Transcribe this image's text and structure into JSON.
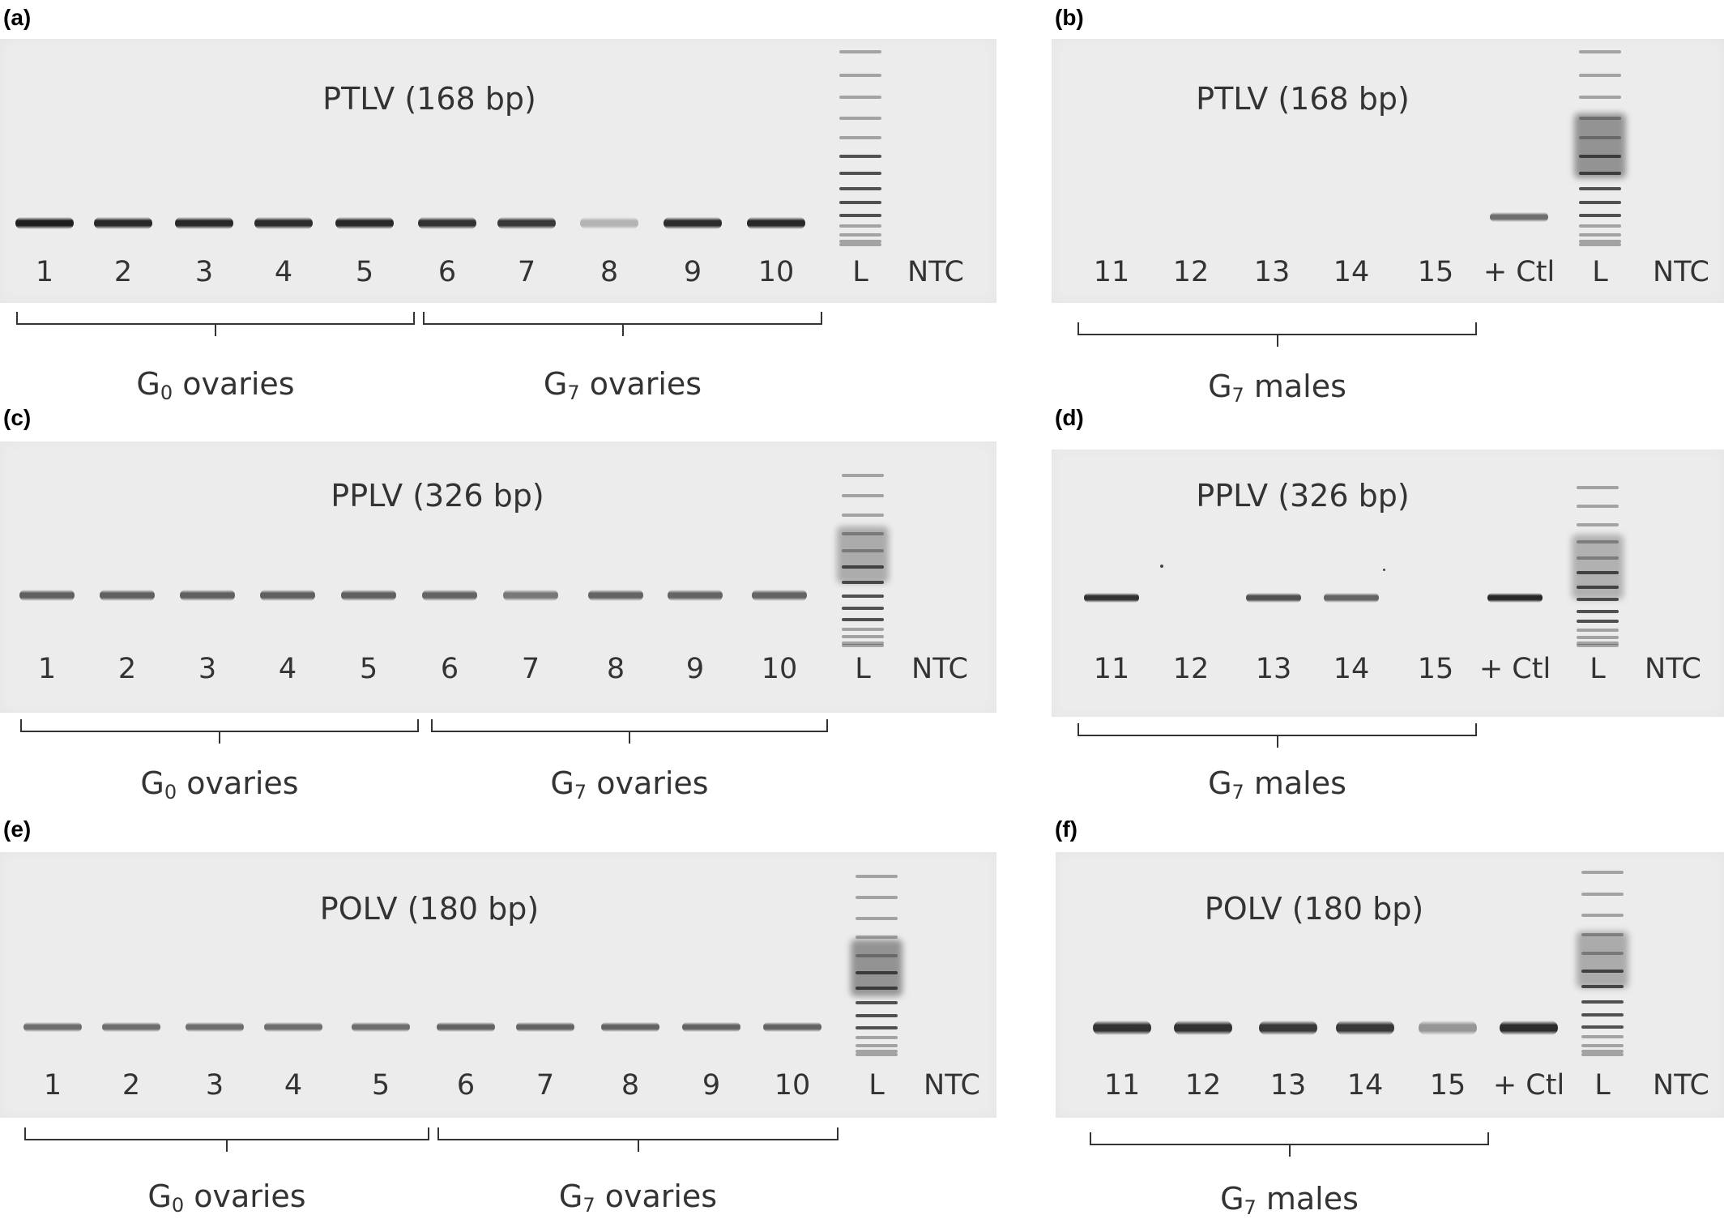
{
  "panels": [
    {
      "letter": "(a)",
      "title": "PTLV (168 bp)",
      "lanes": [
        "1",
        "2",
        "3",
        "4",
        "5",
        "6",
        "7",
        "8",
        "9",
        "10",
        "L",
        "NTC"
      ],
      "intensities": [
        0.95,
        0.9,
        0.9,
        0.88,
        0.9,
        0.85,
        0.82,
        0.2,
        0.88,
        0.9
      ],
      "groups": [
        {
          "label": "G",
          "sub": "0",
          "rest": " ovaries"
        },
        {
          "label": "G",
          "sub": "7",
          "rest": " ovaries"
        }
      ]
    },
    {
      "letter": "(b)",
      "title": "PTLV (168 bp)",
      "lanes": [
        "11",
        "12",
        "13",
        "14",
        "15",
        "+ Ctl",
        "L",
        "NTC"
      ],
      "intensities": [
        0,
        0,
        0,
        0,
        0,
        0.55
      ],
      "groups": [
        {
          "label": "G",
          "sub": "7",
          "rest": " males"
        }
      ]
    },
    {
      "letter": "(c)",
      "title": "PPLV (326 bp)",
      "lanes": [
        "1",
        "2",
        "3",
        "4",
        "5",
        "6",
        "7",
        "8",
        "9",
        "10",
        "L",
        "NTC"
      ],
      "intensities": [
        0.62,
        0.62,
        0.62,
        0.62,
        0.62,
        0.6,
        0.5,
        0.6,
        0.6,
        0.6
      ],
      "groups": [
        {
          "label": "G",
          "sub": "0",
          "rest": " ovaries"
        },
        {
          "label": "G",
          "sub": "7",
          "rest": " ovaries"
        }
      ]
    },
    {
      "letter": "(d)",
      "title": "PPLV (326 bp)",
      "lanes": [
        "11",
        "12",
        "13",
        "14",
        "15",
        "+ Ctl",
        "L",
        "NTC"
      ],
      "intensities": [
        0.85,
        0,
        0.7,
        0.6,
        0,
        0.9
      ],
      "groups": [
        {
          "label": "G",
          "sub": "7",
          "rest": " males"
        }
      ]
    },
    {
      "letter": "(e)",
      "title": "POLV (180 bp)",
      "lanes": [
        "1",
        "2",
        "3",
        "4",
        "5",
        "6",
        "7",
        "8",
        "9",
        "10",
        "L",
        "NTC"
      ],
      "intensities": [
        0.55,
        0.55,
        0.55,
        0.55,
        0.55,
        0.6,
        0.6,
        0.6,
        0.6,
        0.6
      ],
      "groups": [
        {
          "label": "G",
          "sub": "0",
          "rest": " ovaries"
        },
        {
          "label": "G",
          "sub": "7",
          "rest": " ovaries"
        }
      ]
    },
    {
      "letter": "(f)",
      "title": "POLV (180 bp)",
      "lanes": [
        "11",
        "12",
        "13",
        "14",
        "15",
        "+ Ctl",
        "L",
        "NTC"
      ],
      "intensities": [
        0.85,
        0.85,
        0.82,
        0.82,
        0.35,
        0.88
      ],
      "groups": [
        {
          "label": "G",
          "sub": "7",
          "rest": " males"
        }
      ]
    }
  ]
}
